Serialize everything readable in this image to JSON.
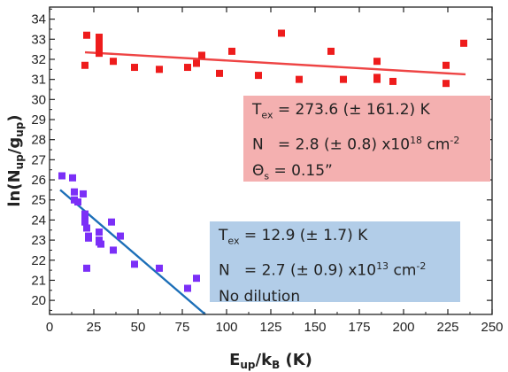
{
  "chart_data": {
    "type": "scatter",
    "title": "",
    "xlabel": {
      "main": "E",
      "sub1": "up",
      "mid": "/k",
      "sub2": "B",
      "tail": " (K)"
    },
    "ylabel": {
      "main": "ln(N",
      "sub1": "up",
      "mid": "/g",
      "sub2": "up",
      "tail": ")"
    },
    "xlim": [
      0,
      250
    ],
    "ylim": [
      19.3,
      34.6
    ],
    "xticks": [
      0,
      25,
      50,
      75,
      100,
      125,
      150,
      175,
      200,
      225,
      250
    ],
    "yticks": [
      20,
      21,
      22,
      23,
      24,
      25,
      26,
      27,
      28,
      29,
      30,
      31,
      32,
      33,
      34
    ],
    "series": [
      {
        "color": "#ee1c1c",
        "marker": "square",
        "points": [
          [
            20,
            31.7
          ],
          [
            21,
            33.2
          ],
          [
            28,
            33.1
          ],
          [
            28,
            32.9
          ],
          [
            28,
            32.7
          ],
          [
            28,
            32.5
          ],
          [
            28,
            32.3
          ],
          [
            36,
            31.9
          ],
          [
            48,
            31.6
          ],
          [
            62,
            31.5
          ],
          [
            78,
            31.6
          ],
          [
            83,
            31.8
          ],
          [
            86,
            32.2
          ],
          [
            96,
            31.3
          ],
          [
            103,
            32.4
          ],
          [
            118,
            31.2
          ],
          [
            131,
            33.3
          ],
          [
            141,
            31.0
          ],
          [
            159,
            32.4
          ],
          [
            166,
            31.0
          ],
          [
            185,
            31.9
          ],
          [
            185,
            31.1
          ],
          [
            185,
            31.0
          ],
          [
            194,
            30.9
          ],
          [
            224,
            31.7
          ],
          [
            224,
            30.8
          ],
          [
            234,
            32.8
          ]
        ],
        "fit": {
          "x": [
            20,
            235
          ],
          "y": [
            32.35,
            31.25
          ]
        }
      },
      {
        "color": "#7b2ff7",
        "marker": "square",
        "points": [
          [
            7,
            26.2
          ],
          [
            13,
            26.1
          ],
          [
            14,
            25.4
          ],
          [
            14,
            25.0
          ],
          [
            16,
            24.9
          ],
          [
            19,
            25.3
          ],
          [
            20,
            24.3
          ],
          [
            20,
            24.0
          ],
          [
            20,
            23.9
          ],
          [
            21,
            23.6
          ],
          [
            22,
            23.2
          ],
          [
            22,
            23.1
          ],
          [
            21,
            21.6
          ],
          [
            28,
            23.4
          ],
          [
            28,
            23.0
          ],
          [
            28,
            22.9
          ],
          [
            29,
            22.8
          ],
          [
            35,
            23.9
          ],
          [
            36,
            22.5
          ],
          [
            40,
            23.2
          ],
          [
            48,
            21.8
          ],
          [
            62,
            21.6
          ],
          [
            78,
            20.6
          ],
          [
            83,
            21.1
          ]
        ],
        "fit": {
          "x": [
            6,
            88
          ],
          "y": [
            25.5,
            19.3
          ]
        }
      }
    ],
    "annotations": [
      {
        "lines": [
          {
            "a": "T",
            "sub": "ex",
            "b": " = 273.6 (± 161.2) K"
          },
          {
            "a": "N",
            "b": "   = 2.8 (± 0.8) x10",
            "sup": "18",
            "c": " cm",
            "sup2": "-2"
          },
          {
            "a": "Θ",
            "sub": "s",
            "b": " = 0.15”"
          }
        ]
      },
      {
        "lines": [
          {
            "a": "T",
            "sub": "ex",
            "b": " = 12.9 (± 1.7) K"
          },
          {
            "a": "N",
            "b": "   = 2.7 (± 0.9) x10",
            "sup": "13",
            "c": " cm",
            "sup2": "-2"
          },
          {
            "a": "No dilution"
          }
        ]
      }
    ]
  }
}
